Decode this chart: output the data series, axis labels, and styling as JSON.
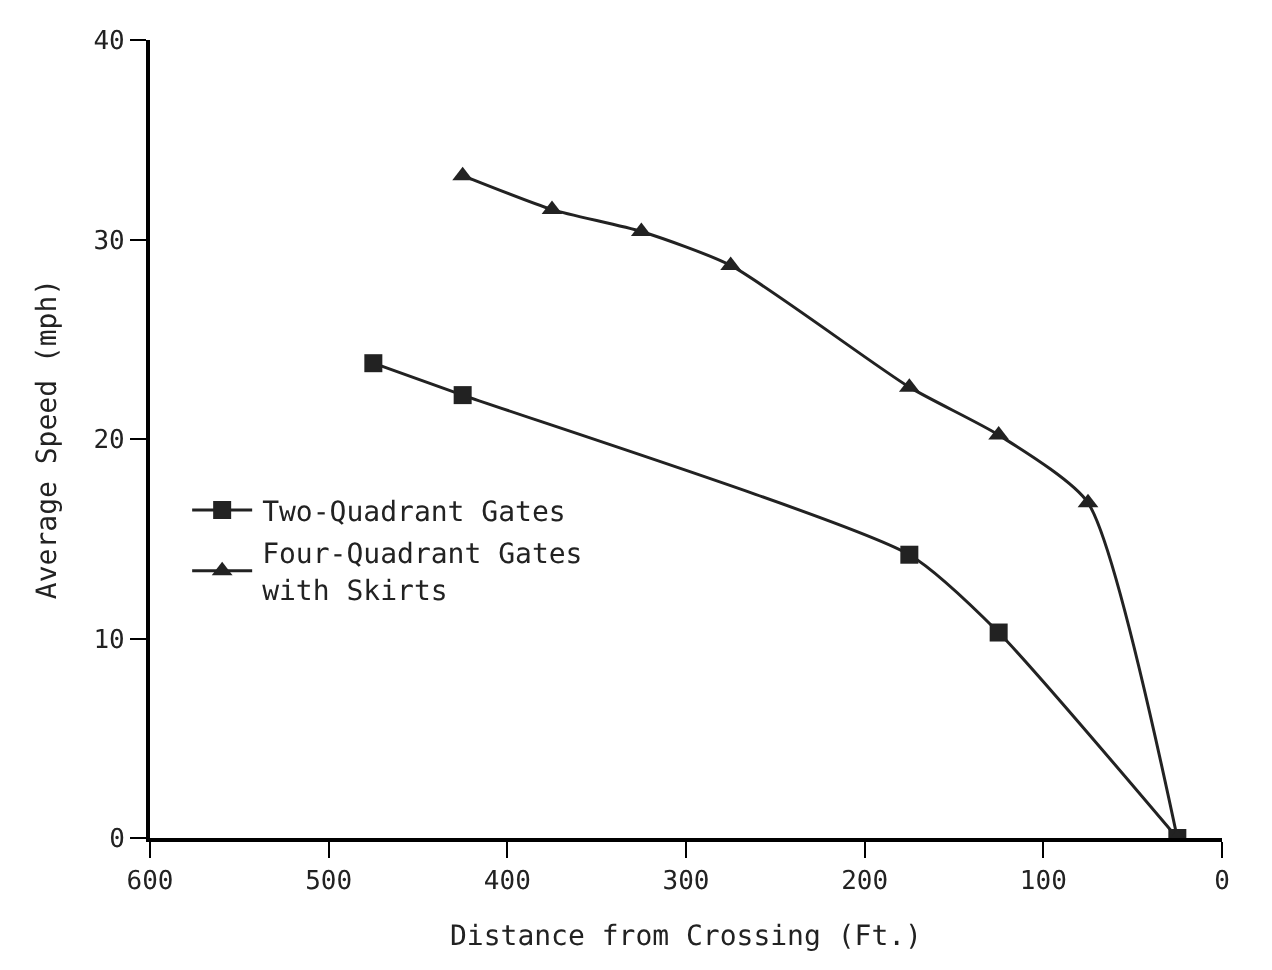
{
  "chart_data": {
    "type": "line",
    "xlabel": "Distance from Crossing (Ft.)",
    "ylabel": "Average Speed (mph)",
    "xlim": [
      600,
      0
    ],
    "xticks": [
      600,
      500,
      400,
      300,
      200,
      100,
      0
    ],
    "ylim": [
      0,
      40
    ],
    "yticks": [
      0,
      10,
      20,
      30,
      40
    ],
    "legend": "left",
    "series": [
      {
        "name": "Two-Quadrant Gates",
        "color": "#222222",
        "marker": "square",
        "x": [
          475,
          425,
          175,
          125,
          25
        ],
        "values": [
          23.8,
          22.2,
          14.2,
          10.3,
          0
        ]
      },
      {
        "name": "Four-Quadrant Gates with Skirts",
        "color": "#222222",
        "marker": "triangle",
        "x": [
          425,
          375,
          325,
          275,
          175,
          125,
          75,
          25
        ],
        "values": [
          33.2,
          31.5,
          30.4,
          28.7,
          22.6,
          20.2,
          16.8,
          0
        ]
      }
    ]
  }
}
